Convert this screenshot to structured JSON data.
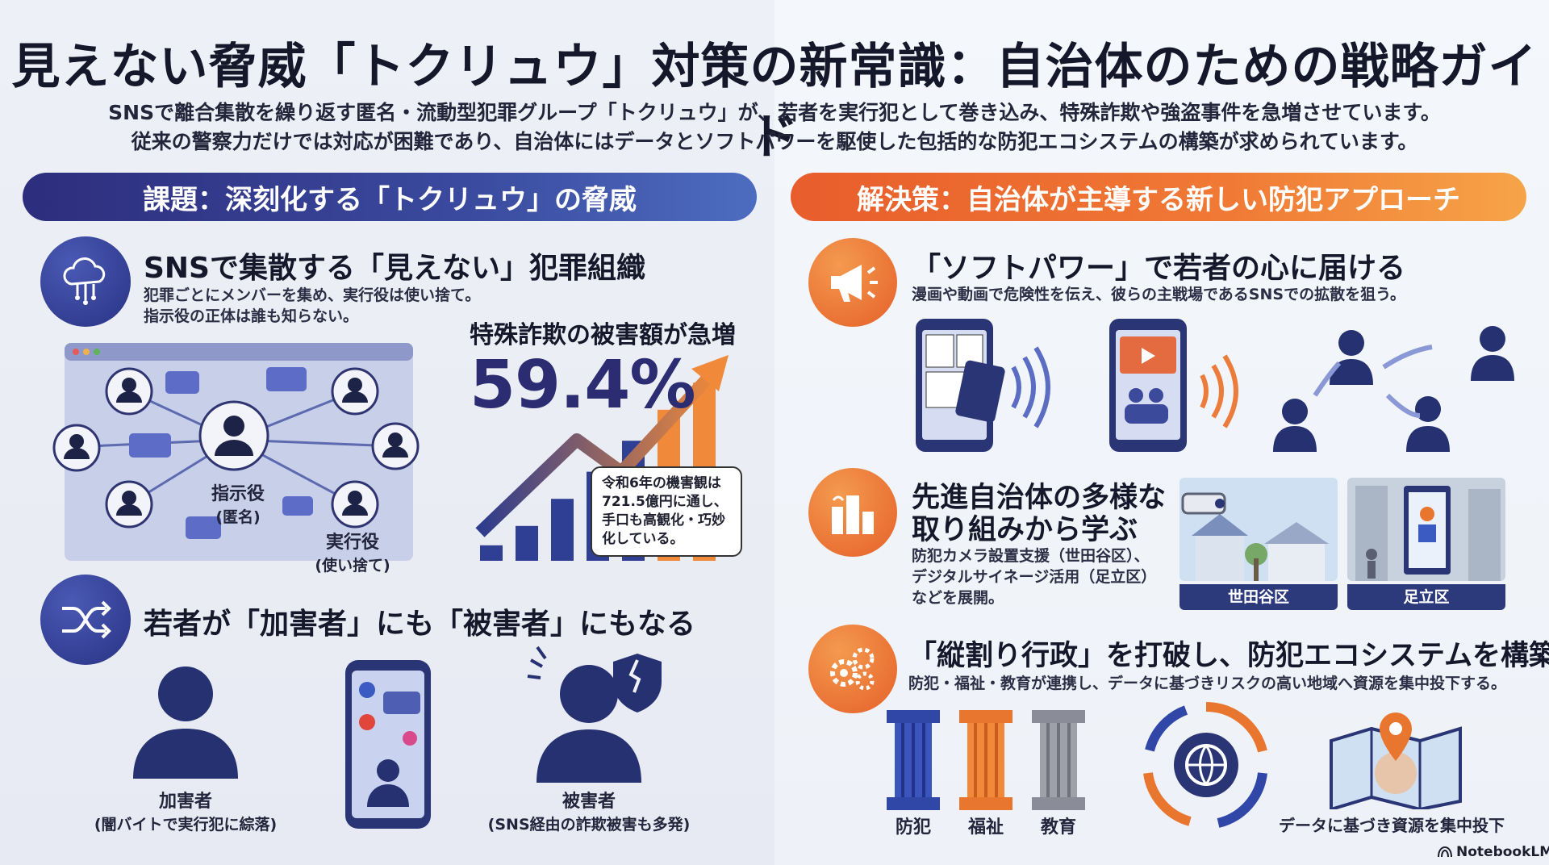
{
  "header": {
    "title": "見えない脅威「トクリュウ」対策の新常識：自治体のための戦略ガイド",
    "subtitle_1": "SNSで離合集散を繰り返す匿名・流動型犯罪グループ「トクリュウ」が、若者を実行犯として巻き込み、特殊詐欺や強盗事件を急増させています。",
    "subtitle_2": "従来の警察力だけでは対応が困難であり、自治体にはデータとソフトパワーを駆使した包括的な防犯エコシステムの構築が求められています。"
  },
  "left": {
    "banner": "課題：深刻化する「トクリュウ」の脅威",
    "network": {
      "heading": "SNSで集散する「見えない」犯罪組織",
      "text_1": "犯罪ごとにメンバーを集め、実行役は使い捨て。",
      "text_2": "指示役の正体は誰も知らない。",
      "leader_label": "指示役",
      "leader_sub": "(匿名)",
      "executor_label": "実行役",
      "executor_sub": "(使い捨て)"
    },
    "fraud": {
      "heading": "特殊詐欺の被害額が急増",
      "percent": "59.4%",
      "note_1": "令和6年の機害観は",
      "note_2": "721.5億円に通し、",
      "note_3": "手口も高観化・巧妙",
      "note_4": "化している。",
      "bar_levels": [
        0.08,
        0.18,
        0.32,
        0.46,
        0.62,
        0.78,
        0.92
      ]
    },
    "youth": {
      "heading": "若者が「加害者」にも「被害者」にもなる",
      "perpetrator": "加害者",
      "perpetrator_sub": "(闇バイトで実行犯に綜落)",
      "victim": "被害者",
      "victim_sub": "(SNS経由の詐欺被害も多発)"
    }
  },
  "right": {
    "banner": "解決策：自治体が主導する新しい防犯アプローチ",
    "softpower": {
      "heading": "「ソフトパワー」で若者の心に届ける",
      "text": "漫画や動画で危険性を伝え、彼らの主戦場であるSNSでの拡散を狙う。"
    },
    "advanced": {
      "heading_1": "先進自治体の多様な",
      "heading_2": "取り組みから学ぶ",
      "text_1": "防犯カメラ設置支援（世田谷区）、",
      "text_2": "デジタルサイネージ活用（足立区）",
      "text_3": "などを展開。",
      "card_1": "世田谷区",
      "card_2": "足立区"
    },
    "ecosystem": {
      "heading": "「縦割り行政」を打破し、防犯エコシステムを構築",
      "text": "防犯・福祉・教育が連携し、データに基づきリスクの高い地域へ資源を集中投下する。",
      "pillar_1": "防犯",
      "pillar_2": "福祉",
      "pillar_3": "教育",
      "map_caption": "データに基づき資源を集中投下"
    }
  },
  "footer": {
    "brand": "NotebookLM"
  },
  "colors": {
    "navy": "#2b2c72",
    "blue_banner": "#2e2d7d",
    "orange": "#e85d2c",
    "pillar_blue": "#3047a8",
    "pillar_orange": "#e8762f",
    "pillar_gray": "#8a8d97"
  }
}
